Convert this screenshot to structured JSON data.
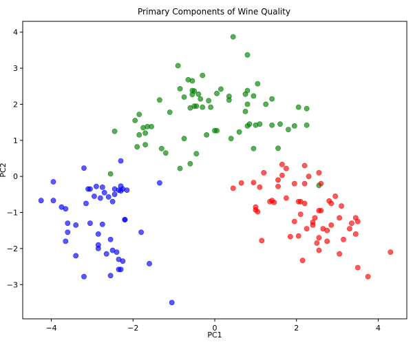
{
  "chart_data": {
    "type": "scatter",
    "title": "Primary Components of Wine Quality",
    "xlabel": "PC1",
    "ylabel": "PC2",
    "xlim": [
      -4.7,
      4.7
    ],
    "ylim": [
      -3.95,
      4.3
    ],
    "xticks": [
      -4,
      -2,
      0,
      2,
      4
    ],
    "yticks": [
      -3,
      -2,
      -1,
      0,
      1,
      2,
      3,
      4
    ],
    "grid": false,
    "legend": "none",
    "series": [
      {
        "color": "#0000ff",
        "points": [
          [
            -4.25,
            -0.67
          ],
          [
            -3.95,
            -0.15
          ],
          [
            -3.95,
            -0.67
          ],
          [
            -3.75,
            -0.85
          ],
          [
            -3.65,
            -0.9
          ],
          [
            -3.6,
            -1.3
          ],
          [
            -3.65,
            -1.8
          ],
          [
            -3.6,
            -1.55
          ],
          [
            -3.4,
            -1.35
          ],
          [
            -3.4,
            -2.2
          ],
          [
            -3.2,
            0.23
          ],
          [
            -3.2,
            -2.78
          ],
          [
            -3.15,
            -0.75
          ],
          [
            -3.1,
            -0.35
          ],
          [
            -3.05,
            -0.35
          ],
          [
            -3.05,
            -1.3
          ],
          [
            -2.95,
            -0.55
          ],
          [
            -2.9,
            -0.28
          ],
          [
            -2.85,
            -1.6
          ],
          [
            -2.85,
            -1.9
          ],
          [
            -2.85,
            -2.0
          ],
          [
            -2.8,
            -0.6
          ],
          [
            -2.75,
            -0.3
          ],
          [
            -2.75,
            -1.33
          ],
          [
            -2.7,
            -0.45
          ],
          [
            -2.65,
            -2.15
          ],
          [
            -2.6,
            -0.57
          ],
          [
            -2.55,
            -2.75
          ],
          [
            -2.55,
            -1.75
          ],
          [
            -2.5,
            -0.7
          ],
          [
            -2.5,
            -2.05
          ],
          [
            -2.45,
            -0.35
          ],
          [
            -2.45,
            -0.5
          ],
          [
            -2.4,
            -2.1
          ],
          [
            -2.35,
            -0.38
          ],
          [
            -2.3,
            -0.27
          ],
          [
            -2.35,
            -2.3
          ],
          [
            -2.35,
            -2.58
          ],
          [
            -2.3,
            0.43
          ],
          [
            -2.3,
            -0.4
          ],
          [
            -2.3,
            -2.58
          ],
          [
            -2.25,
            -0.35
          ],
          [
            -2.25,
            -2.35
          ],
          [
            -2.2,
            -1.2
          ],
          [
            -2.2,
            -1.2
          ],
          [
            -2.15,
            -0.38
          ],
          [
            -1.8,
            -1.55
          ],
          [
            -1.6,
            -2.42
          ],
          [
            -1.35,
            -0.18
          ],
          [
            -1.05,
            -3.5
          ]
        ]
      },
      {
        "color": "#008000",
        "points": [
          [
            -2.45,
            1.25
          ],
          [
            -2.55,
            0.07
          ],
          [
            -1.95,
            1.55
          ],
          [
            -1.85,
            1.72
          ],
          [
            -1.85,
            1.15
          ],
          [
            -1.9,
            0.82
          ],
          [
            -1.75,
            1.35
          ],
          [
            -1.7,
            1.2
          ],
          [
            -1.7,
            0.88
          ],
          [
            -1.65,
            1.38
          ],
          [
            -1.55,
            1.38
          ],
          [
            -1.35,
            2.12
          ],
          [
            -1.3,
            0.77
          ],
          [
            -1.2,
            0.65
          ],
          [
            -1.1,
            1.78
          ],
          [
            -0.9,
            3.07
          ],
          [
            -0.85,
            2.43
          ],
          [
            -0.85,
            0.22
          ],
          [
            -0.75,
            2.2
          ],
          [
            -0.75,
            1.05
          ],
          [
            -0.65,
            2.68
          ],
          [
            -0.6,
            1.9
          ],
          [
            -0.55,
            2.65
          ],
          [
            -0.55,
            2.38
          ],
          [
            -0.55,
            2.27
          ],
          [
            -0.5,
            2.37
          ],
          [
            -0.5,
            1.95
          ],
          [
            -0.45,
            1.95
          ],
          [
            -0.45,
            0.63
          ],
          [
            -0.6,
            0.35
          ],
          [
            -0.4,
            2.28
          ],
          [
            -0.35,
            2.15
          ],
          [
            -0.3,
            1.92
          ],
          [
            -0.3,
            2.8
          ],
          [
            -0.2,
            1.15
          ],
          [
            -0.15,
            2.1
          ],
          [
            -0.1,
            1.92
          ],
          [
            0.05,
            2.3
          ],
          [
            0.05,
            1.27
          ],
          [
            0.0,
            1.27
          ],
          [
            0.15,
            2.42
          ],
          [
            0.35,
            2.22
          ],
          [
            0.35,
            2.12
          ],
          [
            0.4,
            1.05
          ],
          [
            0.45,
            3.87
          ],
          [
            0.6,
            1.23
          ],
          [
            0.75,
            2.28
          ],
          [
            0.75,
            1.8
          ],
          [
            0.8,
            3.37
          ],
          [
            0.8,
            2.38
          ],
          [
            0.8,
            2.0
          ],
          [
            0.8,
            1.4
          ],
          [
            0.85,
            1.45
          ],
          [
            0.95,
            0.77
          ],
          [
            0.95,
            2.23
          ],
          [
            1.0,
            1.42
          ],
          [
            1.05,
            2.57
          ],
          [
            1.1,
            1.45
          ],
          [
            1.25,
            2.0
          ],
          [
            1.4,
            2.15
          ],
          [
            1.4,
            1.42
          ],
          [
            1.55,
            0.78
          ],
          [
            1.6,
            1.45
          ],
          [
            1.8,
            1.3
          ],
          [
            1.95,
            1.4
          ],
          [
            2.05,
            1.92
          ],
          [
            2.25,
            1.42
          ],
          [
            2.25,
            1.88
          ],
          [
            2.55,
            -0.25
          ]
        ]
      },
      {
        "color": "#ff0000",
        "points": [
          [
            0.45,
            -0.33
          ],
          [
            0.65,
            -0.18
          ],
          [
            0.95,
            -0.17
          ],
          [
            1.0,
            -0.85
          ],
          [
            1.05,
            -0.98
          ],
          [
            1.0,
            -0.93
          ],
          [
            1.1,
            -0.3
          ],
          [
            1.15,
            -1.78
          ],
          [
            1.2,
            0.1
          ],
          [
            1.35,
            -0.7
          ],
          [
            1.4,
            -0.67
          ],
          [
            1.45,
            -0.72
          ],
          [
            1.55,
            -0.28
          ],
          [
            1.55,
            -0.1
          ],
          [
            1.65,
            0.03
          ],
          [
            1.65,
            0.33
          ],
          [
            1.75,
            -0.6
          ],
          [
            1.75,
            0.22
          ],
          [
            1.85,
            -1.67
          ],
          [
            1.95,
            -1.25
          ],
          [
            1.95,
            -0.2
          ],
          [
            2.05,
            -0.7
          ],
          [
            2.05,
            -1.65
          ],
          [
            2.1,
            -1.05
          ],
          [
            2.1,
            -0.7
          ],
          [
            2.15,
            -2.33
          ],
          [
            2.2,
            0.3
          ],
          [
            2.2,
            -0.2
          ],
          [
            2.2,
            -0.75
          ],
          [
            2.25,
            -1.45
          ],
          [
            2.3,
            0.0
          ],
          [
            2.4,
            -1.27
          ],
          [
            2.4,
            -1.35
          ],
          [
            2.45,
            -1.15
          ],
          [
            2.5,
            -1.85
          ],
          [
            2.55,
            0.1
          ],
          [
            2.55,
            -0.95
          ],
          [
            2.55,
            -1.7
          ],
          [
            2.55,
            -2.05
          ],
          [
            2.6,
            -0.2
          ],
          [
            2.6,
            -0.95
          ],
          [
            2.65,
            -1.45
          ],
          [
            2.75,
            -1.5
          ],
          [
            2.75,
            -1.8
          ],
          [
            2.8,
            -0.68
          ],
          [
            2.85,
            -0.75
          ],
          [
            2.85,
            -1.35
          ],
          [
            2.95,
            -0.55
          ],
          [
            3.05,
            -2.15
          ],
          [
            3.05,
            -1.15
          ],
          [
            3.1,
            -0.82
          ],
          [
            3.15,
            -1.75
          ],
          [
            3.3,
            -1.45
          ],
          [
            3.35,
            -1.3
          ],
          [
            3.45,
            -1.15
          ],
          [
            3.45,
            -1.6
          ],
          [
            3.5,
            -2.53
          ],
          [
            3.5,
            -1.25
          ],
          [
            3.75,
            -2.78
          ],
          [
            4.3,
            -2.1
          ]
        ]
      }
    ]
  }
}
